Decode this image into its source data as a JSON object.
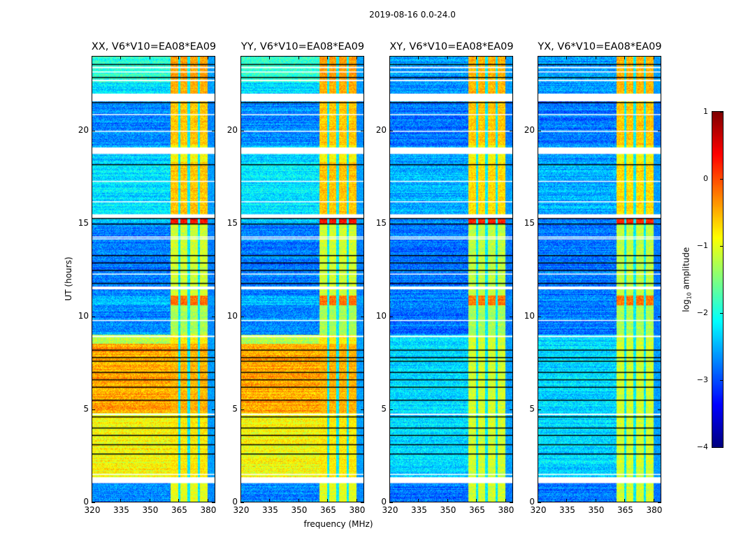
{
  "chart_data": {
    "type": "heatmap",
    "title": "2019-08-16 0.0-24.0",
    "xlabel": "frequency (MHz)",
    "ylabel": "UT (hours)",
    "xlim": [
      320,
      384
    ],
    "ylim": [
      0,
      24
    ],
    "xticks": [
      "320",
      "335",
      "350",
      "365",
      "380"
    ],
    "xtick_values": [
      320,
      335,
      350,
      365,
      380
    ],
    "yticks": [
      "0",
      "5",
      "10",
      "15",
      "20"
    ],
    "ytick_values": [
      0,
      5,
      10,
      15,
      20
    ],
    "colorbar": {
      "label_main": "log",
      "label_sub": "10",
      "label_rest": " amplitude",
      "range": [
        -4,
        1
      ],
      "colormap": "jet",
      "ticks": [
        "1",
        "0",
        "−1",
        "−2",
        "−3",
        "−4"
      ],
      "tick_values": [
        1,
        0,
        -1,
        -2,
        -3,
        -4
      ]
    },
    "panels": [
      {
        "title": "XX, V6*V10=EA08*EA09",
        "profile": "parallel"
      },
      {
        "title": "YY, V6*V10=EA08*EA09",
        "profile": "parallel"
      },
      {
        "title": "XY, V6*V10=EA08*EA09",
        "profile": "cross"
      },
      {
        "title": "YX, V6*V10=EA08*EA09",
        "profile": "cross"
      }
    ],
    "rfi_band_mhz": [
      361,
      380.5
    ],
    "band_notches_mhz": [
      365.5,
      370.5,
      375.8
    ],
    "profiles": {
      "parallel": [
        [
          0,
          1.0,
          -2.7,
          -1.0
        ],
        [
          1.3,
          4.8,
          -0.9,
          -0.8
        ],
        [
          4.8,
          8.5,
          -0.45,
          -0.5
        ],
        [
          8.5,
          9.0,
          -1.2,
          -0.8
        ],
        [
          9.0,
          10.6,
          -2.7,
          -1.3
        ],
        [
          10.6,
          11.1,
          -2.5,
          -0.2
        ],
        [
          11.1,
          15.0,
          -2.75,
          -1.1
        ],
        [
          15.0,
          15.3,
          -2.4,
          0.3
        ],
        [
          15.5,
          18.3,
          -2.25,
          -0.6
        ],
        [
          18.3,
          19.2,
          -2.4,
          -0.9
        ],
        [
          19.2,
          21.6,
          -2.7,
          -0.6
        ],
        [
          22.0,
          22.6,
          -2.3,
          -0.5
        ],
        [
          22.6,
          24,
          -1.9,
          -0.4
        ]
      ],
      "cross": [
        [
          0,
          1.0,
          -2.8,
          -1.1
        ],
        [
          1.3,
          9.0,
          -2.3,
          -1.1
        ],
        [
          9.0,
          10.6,
          -2.8,
          -1.3
        ],
        [
          10.6,
          11.1,
          -2.7,
          -0.2
        ],
        [
          11.1,
          15.0,
          -2.8,
          -1.2
        ],
        [
          15.0,
          15.3,
          -2.7,
          0.2
        ],
        [
          15.5,
          18.3,
          -2.5,
          -0.7
        ],
        [
          18.3,
          19.2,
          -2.6,
          -0.9
        ],
        [
          19.2,
          21.6,
          -2.8,
          -0.6
        ],
        [
          22.0,
          24,
          -2.6,
          -0.5
        ]
      ]
    },
    "flagged_gaps_hours": [
      [
        1.0,
        1.3
      ],
      [
        4.7,
        4.75
      ],
      [
        8.9,
        8.95
      ],
      [
        11.45,
        11.6
      ],
      [
        15.3,
        15.5
      ],
      [
        18.75,
        19.1
      ],
      [
        21.6,
        22.0
      ],
      [
        22.7,
        22.75
      ],
      [
        23.4,
        23.45
      ]
    ],
    "flagged_lines_hours": [
      1.5,
      9.8,
      12.3,
      14.2,
      14.3,
      16.2,
      17.3,
      20.0,
      20.9,
      23.2
    ],
    "dark_lines_hours": [
      2.6,
      3.1,
      3.6,
      4.0,
      4.6,
      5.5,
      6.2,
      6.6,
      7.0,
      7.6,
      7.8,
      8.2,
      11.8,
      12.5,
      12.9,
      13.3,
      15.0,
      15.3,
      18.2,
      21.55,
      22.9,
      23.6
    ]
  }
}
